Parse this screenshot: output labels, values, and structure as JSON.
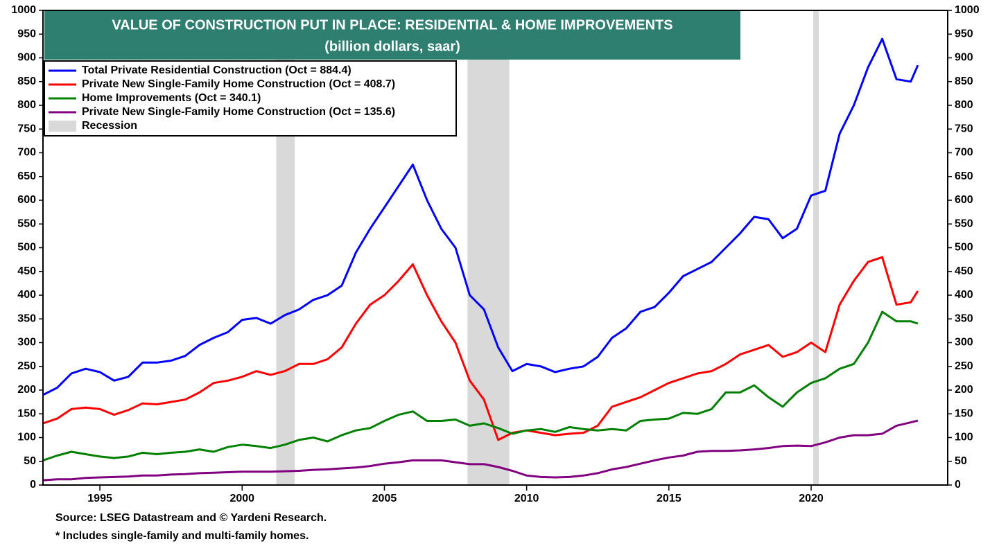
{
  "chart_data": {
    "type": "line",
    "title": "VALUE OF CONSTRUCTION PUT IN PLACE: RESIDENTIAL & HOME IMPROVEMENTS",
    "subtitle": "(billion dollars, saar)",
    "source": "Source: LSEG Datastream and © Yardeni Research.",
    "note": "* Includes single-family and multi-family homes.",
    "x": [
      1993,
      1993.5,
      1994,
      1994.5,
      1995,
      1995.5,
      1996,
      1996.5,
      1997,
      1997.5,
      1998,
      1998.5,
      1999,
      1999.5,
      2000,
      2000.5,
      2001,
      2001.5,
      2002,
      2002.5,
      2003,
      2003.5,
      2004,
      2004.5,
      2005,
      2005.5,
      2006,
      2006.5,
      2007,
      2007.5,
      2008,
      2008.5,
      2009,
      2009.5,
      2010,
      2010.5,
      2011,
      2011.5,
      2012,
      2012.5,
      2013,
      2013.5,
      2014,
      2014.5,
      2015,
      2015.5,
      2016,
      2016.5,
      2017,
      2017.5,
      2018,
      2018.5,
      2019,
      2019.5,
      2020,
      2020.5,
      2021,
      2021.5,
      2022,
      2022.5,
      2023,
      2023.5,
      2023.75
    ],
    "series": [
      {
        "name": "Total Private Residential Construction (Oct = 884.4)",
        "color": "#0000ff",
        "values": [
          190,
          205,
          235,
          245,
          238,
          220,
          228,
          258,
          258,
          262,
          272,
          295,
          310,
          322,
          348,
          352,
          340,
          358,
          370,
          390,
          400,
          420,
          490,
          540,
          585,
          630,
          675,
          600,
          540,
          500,
          400,
          370,
          290,
          240,
          255,
          250,
          238,
          245,
          250,
          270,
          310,
          330,
          365,
          375,
          405,
          440,
          455,
          470,
          500,
          530,
          565,
          560,
          520,
          540,
          610,
          620,
          740,
          800,
          880,
          940,
          855,
          850,
          884.4
        ]
      },
      {
        "name": "Private New Single-Family Home Construction (Oct = 408.7)",
        "color": "#ff0000",
        "values": [
          130,
          140,
          160,
          163,
          160,
          148,
          158,
          172,
          170,
          175,
          180,
          195,
          215,
          220,
          228,
          240,
          232,
          240,
          255,
          255,
          265,
          290,
          340,
          380,
          400,
          430,
          465,
          400,
          345,
          300,
          220,
          180,
          95,
          110,
          115,
          110,
          105,
          108,
          110,
          125,
          165,
          175,
          185,
          200,
          215,
          225,
          235,
          240,
          255,
          275,
          285,
          295,
          270,
          280,
          300,
          280,
          380,
          430,
          470,
          480,
          380,
          385,
          408.7
        ]
      },
      {
        "name": "Home Improvements (Oct = 340.1)",
        "color": "#008000",
        "values": [
          52,
          62,
          70,
          65,
          60,
          57,
          60,
          68,
          65,
          68,
          70,
          75,
          70,
          80,
          85,
          82,
          78,
          85,
          95,
          100,
          92,
          105,
          115,
          120,
          135,
          148,
          155,
          135,
          135,
          138,
          125,
          130,
          120,
          108,
          115,
          118,
          112,
          122,
          118,
          115,
          118,
          115,
          135,
          138,
          140,
          152,
          150,
          160,
          195,
          195,
          210,
          185,
          165,
          195,
          215,
          225,
          245,
          255,
          300,
          365,
          345,
          345,
          340.1
        ]
      },
      {
        "name": "Private New Single-Family Home Construction (Oct = 135.6)",
        "color": "#800080",
        "values": [
          10,
          12,
          12,
          15,
          16,
          17,
          18,
          20,
          20,
          22,
          23,
          25,
          26,
          27,
          28,
          28,
          28,
          29,
          30,
          32,
          33,
          35,
          37,
          40,
          45,
          48,
          52,
          52,
          52,
          48,
          44,
          44,
          38,
          30,
          20,
          17,
          16,
          17,
          20,
          25,
          33,
          38,
          45,
          52,
          58,
          62,
          70,
          72,
          72,
          73,
          75,
          78,
          82,
          83,
          82,
          90,
          100,
          105,
          105,
          108,
          125,
          132,
          135.6
        ]
      }
    ],
    "recession_label": "Recession",
    "recession_color": "#d9d9d9",
    "recessions": [
      [
        2001.2,
        2001.85
      ],
      [
        2007.92,
        2009.39
      ],
      [
        2020.07,
        2020.27
      ]
    ],
    "xlim": [
      1993,
      2024.8
    ],
    "xticks": [
      1995,
      2000,
      2005,
      2010,
      2015,
      2020
    ],
    "ylim": [
      0,
      1000
    ],
    "yticks": [
      0,
      50,
      100,
      150,
      200,
      250,
      300,
      350,
      400,
      450,
      500,
      550,
      600,
      650,
      700,
      750,
      800,
      850,
      900,
      950,
      1000
    ],
    "y2lim": [
      0,
      1000
    ],
    "y2ticks": [
      0,
      50,
      100,
      150,
      200,
      250,
      300,
      350,
      400,
      450,
      500,
      550,
      600,
      650,
      700,
      750,
      800,
      850,
      900,
      950,
      1000
    ]
  }
}
